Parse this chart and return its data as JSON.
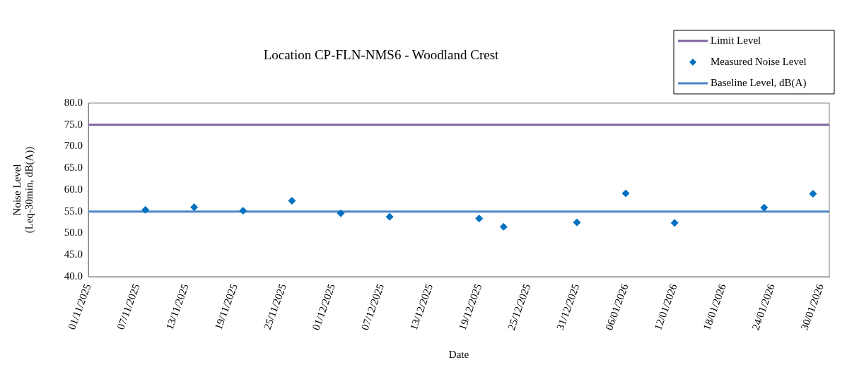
{
  "chart_data": {
    "type": "scatter",
    "title": "Location CP-FLN-NMS6 - Woodland Crest",
    "xlabel": "Date",
    "ylabel": "Noise Level\n(Leq-30min, dB(A))",
    "xlim": [
      "2025-11-01",
      "2026-01-31"
    ],
    "xticks": [
      {
        "value": "2025-11-01",
        "label": "01/11/2025"
      },
      {
        "value": "2025-11-07",
        "label": "07/11/2025"
      },
      {
        "value": "2025-11-13",
        "label": "13/11/2025"
      },
      {
        "value": "2025-11-19",
        "label": "19/11/2025"
      },
      {
        "value": "2025-11-25",
        "label": "25/11/2025"
      },
      {
        "value": "2025-12-01",
        "label": "01/12/2025"
      },
      {
        "value": "2025-12-07",
        "label": "07/12/2025"
      },
      {
        "value": "2025-12-13",
        "label": "13/12/2025"
      },
      {
        "value": "2025-12-19",
        "label": "19/12/2025"
      },
      {
        "value": "2025-12-25",
        "label": "25/12/2025"
      },
      {
        "value": "2025-12-31",
        "label": "31/12/2025"
      },
      {
        "value": "2026-01-06",
        "label": "06/01/2026"
      },
      {
        "value": "2026-01-12",
        "label": "12/01/2026"
      },
      {
        "value": "2026-01-18",
        "label": "18/01/2026"
      },
      {
        "value": "2026-01-24",
        "label": "24/01/2026"
      },
      {
        "value": "2026-01-30",
        "label": "30/01/2026"
      }
    ],
    "ylim": [
      40,
      80
    ],
    "yticks": [
      {
        "value": 40,
        "label": "40.0"
      },
      {
        "value": 45,
        "label": "45.0"
      },
      {
        "value": 50,
        "label": "50.0"
      },
      {
        "value": 55,
        "label": "55.0"
      },
      {
        "value": 60,
        "label": "60.0"
      },
      {
        "value": 65,
        "label": "65.0"
      },
      {
        "value": 70,
        "label": "70.0"
      },
      {
        "value": 75,
        "label": "75.0"
      },
      {
        "value": 80,
        "label": "80.0"
      }
    ],
    "grid": false,
    "legend": "top right",
    "marker": "diamond",
    "series": [
      {
        "name": "Limit Level",
        "type": "line",
        "marker": "none",
        "color": "#7f63a1",
        "x": [
          "2025-11-01",
          "2026-01-31"
        ],
        "values": [
          75,
          75
        ]
      },
      {
        "name": "Measured Noise Level",
        "color": "#0070c0",
        "x": [
          "2025-11-08",
          "2025-11-14",
          "2025-11-20",
          "2025-11-26",
          "2025-12-02",
          "2025-12-08",
          "2025-12-19",
          "2025-12-22",
          "2025-12-31",
          "2026-01-06",
          "2026-01-12",
          "2026-01-23",
          "2026-01-29"
        ],
        "values": [
          55.4,
          56.0,
          55.2,
          57.5,
          54.6,
          53.8,
          53.4,
          51.5,
          52.5,
          59.2,
          52.4,
          55.9,
          59.1
        ]
      },
      {
        "name": "Baseline Level, dB(A)",
        "type": "line",
        "marker": "none",
        "color": "#4a86c8",
        "x": [
          "2025-11-01",
          "2026-01-31"
        ],
        "values": [
          55,
          55
        ]
      }
    ]
  }
}
